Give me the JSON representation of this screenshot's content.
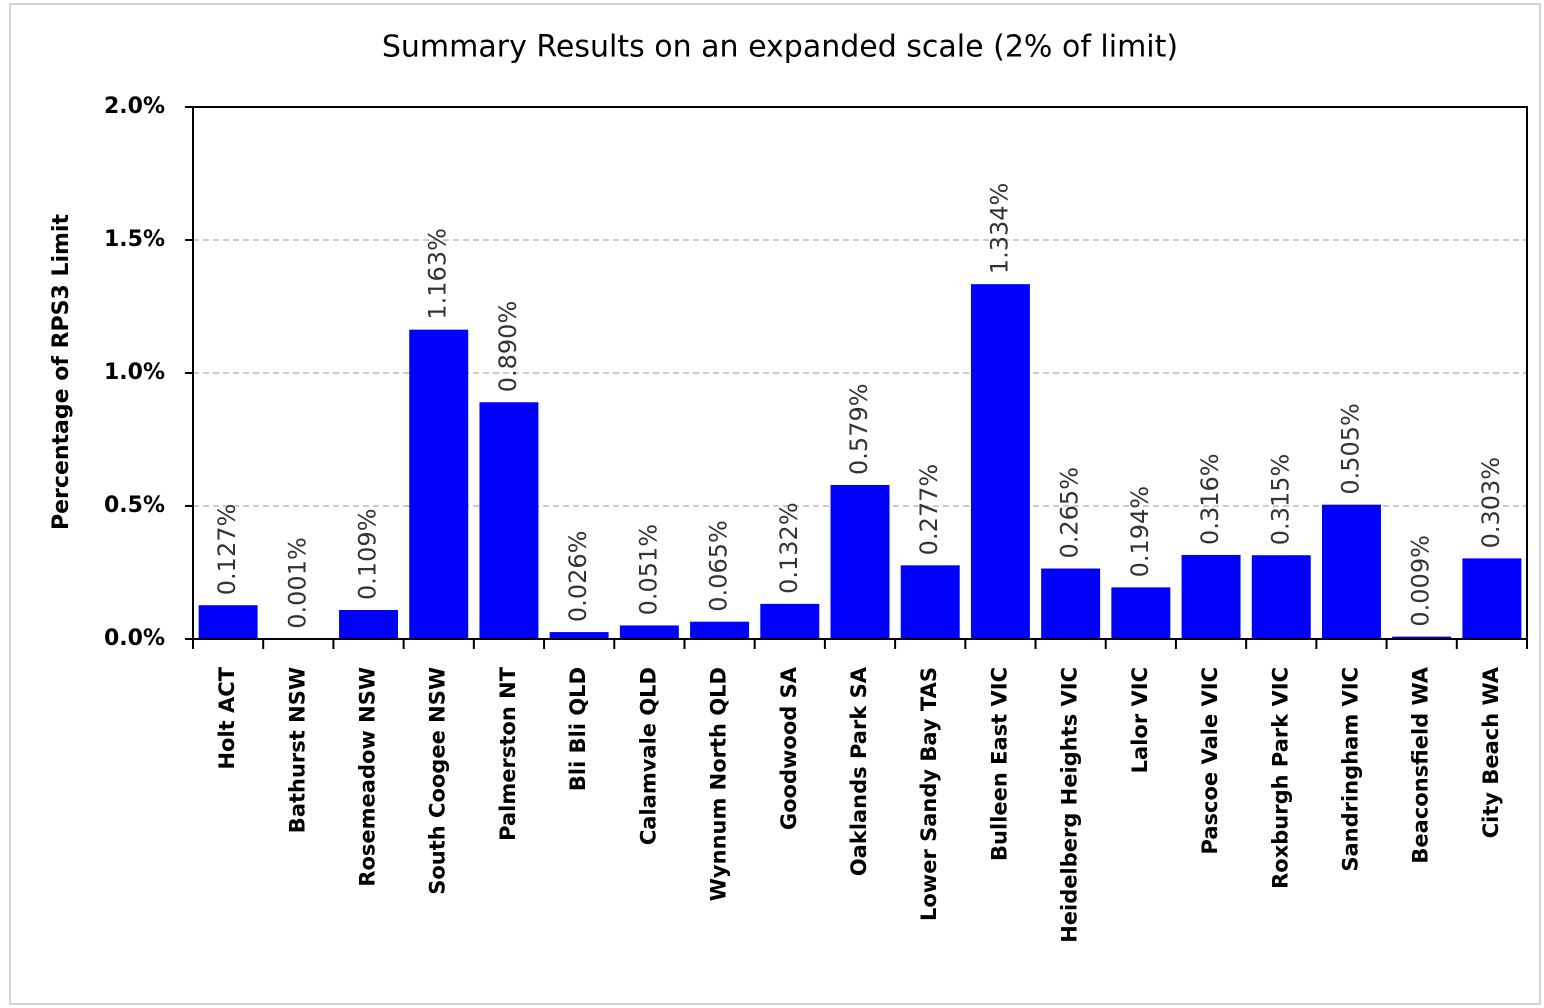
{
  "chart_data": {
    "type": "bar",
    "title": "Summary Results on an expanded scale (2% of limit)",
    "y_label": "Percentage of RPS3 Limit",
    "categories": [
      "Holt ACT",
      "Bathurst NSW",
      "Rosemeadow NSW",
      "South Coogee NSW",
      "Palmerston NT",
      "Bli Bli QLD",
      "Calamvale QLD",
      "Wynnum North QLD",
      "Goodwood SA",
      "Oaklands Park SA",
      "Lower Sandy Bay TAS",
      "Bulleen East VIC",
      "Heidelberg Heights VIC",
      "Lalor VIC",
      "Pascoe Vale VIC",
      "Roxburgh Park VIC",
      "Sandringham VIC",
      "Beaconsfield WA",
      "City Beach WA"
    ],
    "values": [
      0.127,
      0.001,
      0.109,
      1.163,
      0.89,
      0.026,
      0.051,
      0.065,
      0.132,
      0.579,
      0.277,
      1.334,
      0.265,
      0.194,
      0.316,
      0.315,
      0.505,
      0.009,
      0.303
    ],
    "value_labels": [
      "0.127%",
      "0.001%",
      "0.109%",
      "1.163%",
      "0.890%",
      "0.026%",
      "0.051%",
      "0.065%",
      "0.132%",
      "0.579%",
      "0.277%",
      "1.334%",
      "0.265%",
      "0.194%",
      "0.316%",
      "0.315%",
      "0.505%",
      "0.009%",
      "0.303%"
    ],
    "color": "#0000ff",
    "ylim": [
      0,
      2
    ],
    "yticks": [
      {
        "value": 0,
        "label": "0.0%"
      },
      {
        "value": 0.5,
        "label": "0.5%"
      },
      {
        "value": 1,
        "label": "1.0%"
      },
      {
        "value": 1.5,
        "label": "1.5%"
      },
      {
        "value": 2,
        "label": "2.0%"
      }
    ],
    "grid": true
  }
}
